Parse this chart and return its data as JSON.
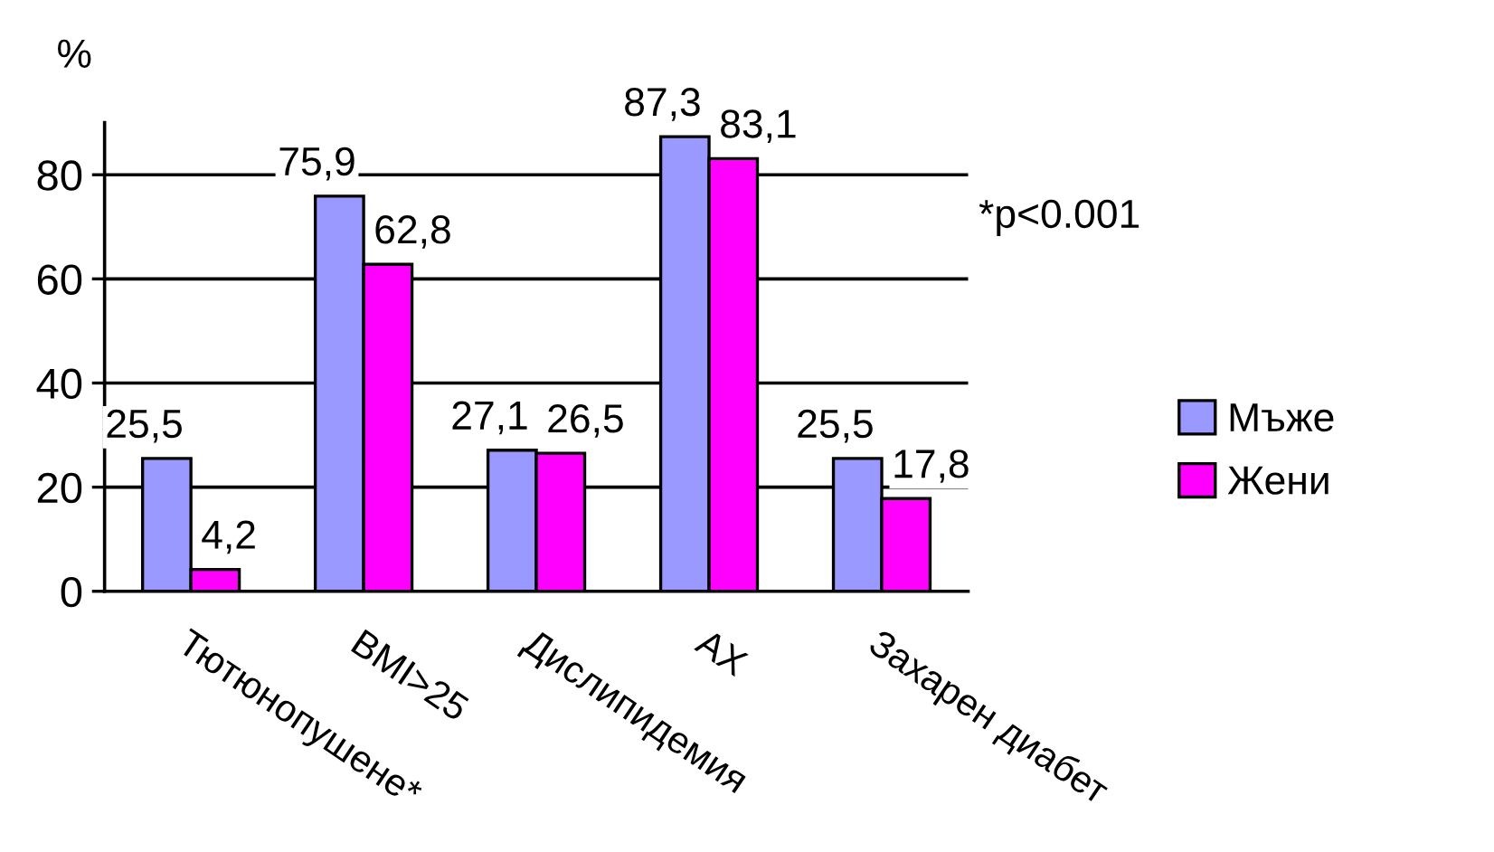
{
  "chart_data": {
    "type": "bar",
    "ylabel": "%",
    "categories": [
      "Тютюнопушене*",
      "BMI>25",
      "Дислипидемия",
      "АХ",
      "Захарен диабет"
    ],
    "series": [
      {
        "name": "Мъже",
        "color": "#9999ff",
        "values": [
          25.5,
          75.9,
          27.1,
          87.3,
          25.5
        ],
        "value_labels": [
          "25,5",
          "75,9",
          "27,1",
          "87,3",
          "25,5"
        ]
      },
      {
        "name": "Жени",
        "color": "#ff00ff",
        "values": [
          4.2,
          62.8,
          26.5,
          83.1,
          17.8
        ],
        "value_labels": [
          "4,2",
          "62,8",
          "26,5",
          "83,1",
          "17,8"
        ]
      }
    ],
    "ylim": [
      0,
      90
    ],
    "yticks": [
      0,
      20,
      40,
      60,
      80
    ],
    "grid": "y",
    "legend": "right",
    "annotations": [
      "*p<0.001"
    ]
  }
}
